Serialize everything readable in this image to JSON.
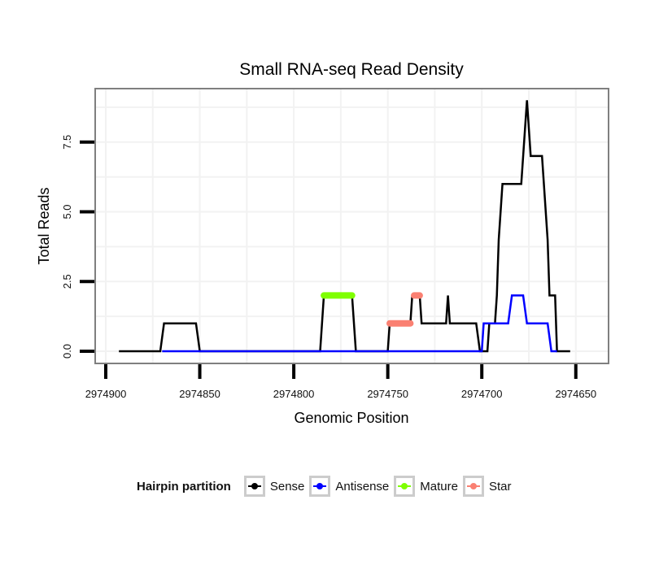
{
  "chart_data": {
    "type": "line",
    "title": "Small RNA-seq Read Density",
    "xlabel": "Genomic Position",
    "ylabel": "Total Reads",
    "x_reversed": true,
    "xlim": [
      2974910,
      2974640
    ],
    "ylim": [
      -0.3,
      9.2
    ],
    "x_ticks": [
      2974900,
      2974850,
      2974800,
      2974750,
      2974700,
      2974650
    ],
    "x_tick_labels": [
      "2974900",
      "2974850",
      "2974800",
      "2974750",
      "2974700",
      "2974650"
    ],
    "y_ticks": [
      0,
      2.5,
      5,
      7.5
    ],
    "y_tick_labels": [
      "0.0",
      "2.5",
      "5.0",
      "7.5"
    ],
    "grid": true,
    "legend": {
      "title": "Hairpin partition",
      "placement": "bottom",
      "entries": [
        {
          "name": "Sense",
          "color": "#000000"
        },
        {
          "name": "Antisense",
          "color": "#0000ff"
        },
        {
          "name": "Mature",
          "color": "#7fff00"
        },
        {
          "name": "Star",
          "color": "#fa8072"
        }
      ]
    },
    "series": [
      {
        "name": "Sense",
        "color": "#000000",
        "points": [
          [
            2974893,
            0
          ],
          [
            2974871,
            0
          ],
          [
            2974869,
            1
          ],
          [
            2974852,
            1
          ],
          [
            2974850,
            0
          ],
          [
            2974786,
            0
          ],
          [
            2974784,
            2
          ],
          [
            2974769,
            2
          ],
          [
            2974767,
            0
          ],
          [
            2974750,
            0
          ],
          [
            2974749,
            1
          ],
          [
            2974738,
            1
          ],
          [
            2974737,
            2
          ],
          [
            2974733,
            2
          ],
          [
            2974732,
            1
          ],
          [
            2974719,
            1
          ],
          [
            2974718,
            2
          ],
          [
            2974717,
            1
          ],
          [
            2974703,
            1
          ],
          [
            2974701,
            0
          ],
          [
            2974697,
            0
          ],
          [
            2974696,
            1
          ],
          [
            2974693,
            1
          ],
          [
            2974692,
            2
          ],
          [
            2974691,
            4
          ],
          [
            2974690,
            5
          ],
          [
            2974689,
            6
          ],
          [
            2974679,
            6
          ],
          [
            2974676,
            9
          ],
          [
            2974674,
            7
          ],
          [
            2974668,
            7
          ],
          [
            2974666,
            5
          ],
          [
            2974665,
            4
          ],
          [
            2974664,
            2
          ],
          [
            2974661,
            2
          ],
          [
            2974660,
            0
          ],
          [
            2974653,
            0
          ]
        ]
      },
      {
        "name": "Antisense",
        "color": "#0000ff",
        "points": [
          [
            2974870,
            0
          ],
          [
            2974850,
            0
          ],
          [
            2974784,
            0
          ],
          [
            2974768,
            0
          ],
          [
            2974749,
            0
          ],
          [
            2974702,
            0
          ],
          [
            2974700,
            0
          ],
          [
            2974699,
            1
          ],
          [
            2974686,
            1
          ],
          [
            2974684,
            2
          ],
          [
            2974678,
            2
          ],
          [
            2974676,
            1
          ],
          [
            2974665,
            1
          ],
          [
            2974663,
            0
          ],
          [
            2974660,
            0
          ]
        ]
      },
      {
        "name": "Mature",
        "color": "#7fff00",
        "points": [
          [
            2974784,
            2
          ],
          [
            2974769,
            2
          ]
        ]
      },
      {
        "name": "Star",
        "color": "#fa8072",
        "points": [
          [
            2974749,
            1
          ],
          [
            2974738,
            1
          ]
        ],
        "points_2": [
          [
            2974736,
            2
          ],
          [
            2974733,
            2
          ]
        ]
      }
    ]
  }
}
